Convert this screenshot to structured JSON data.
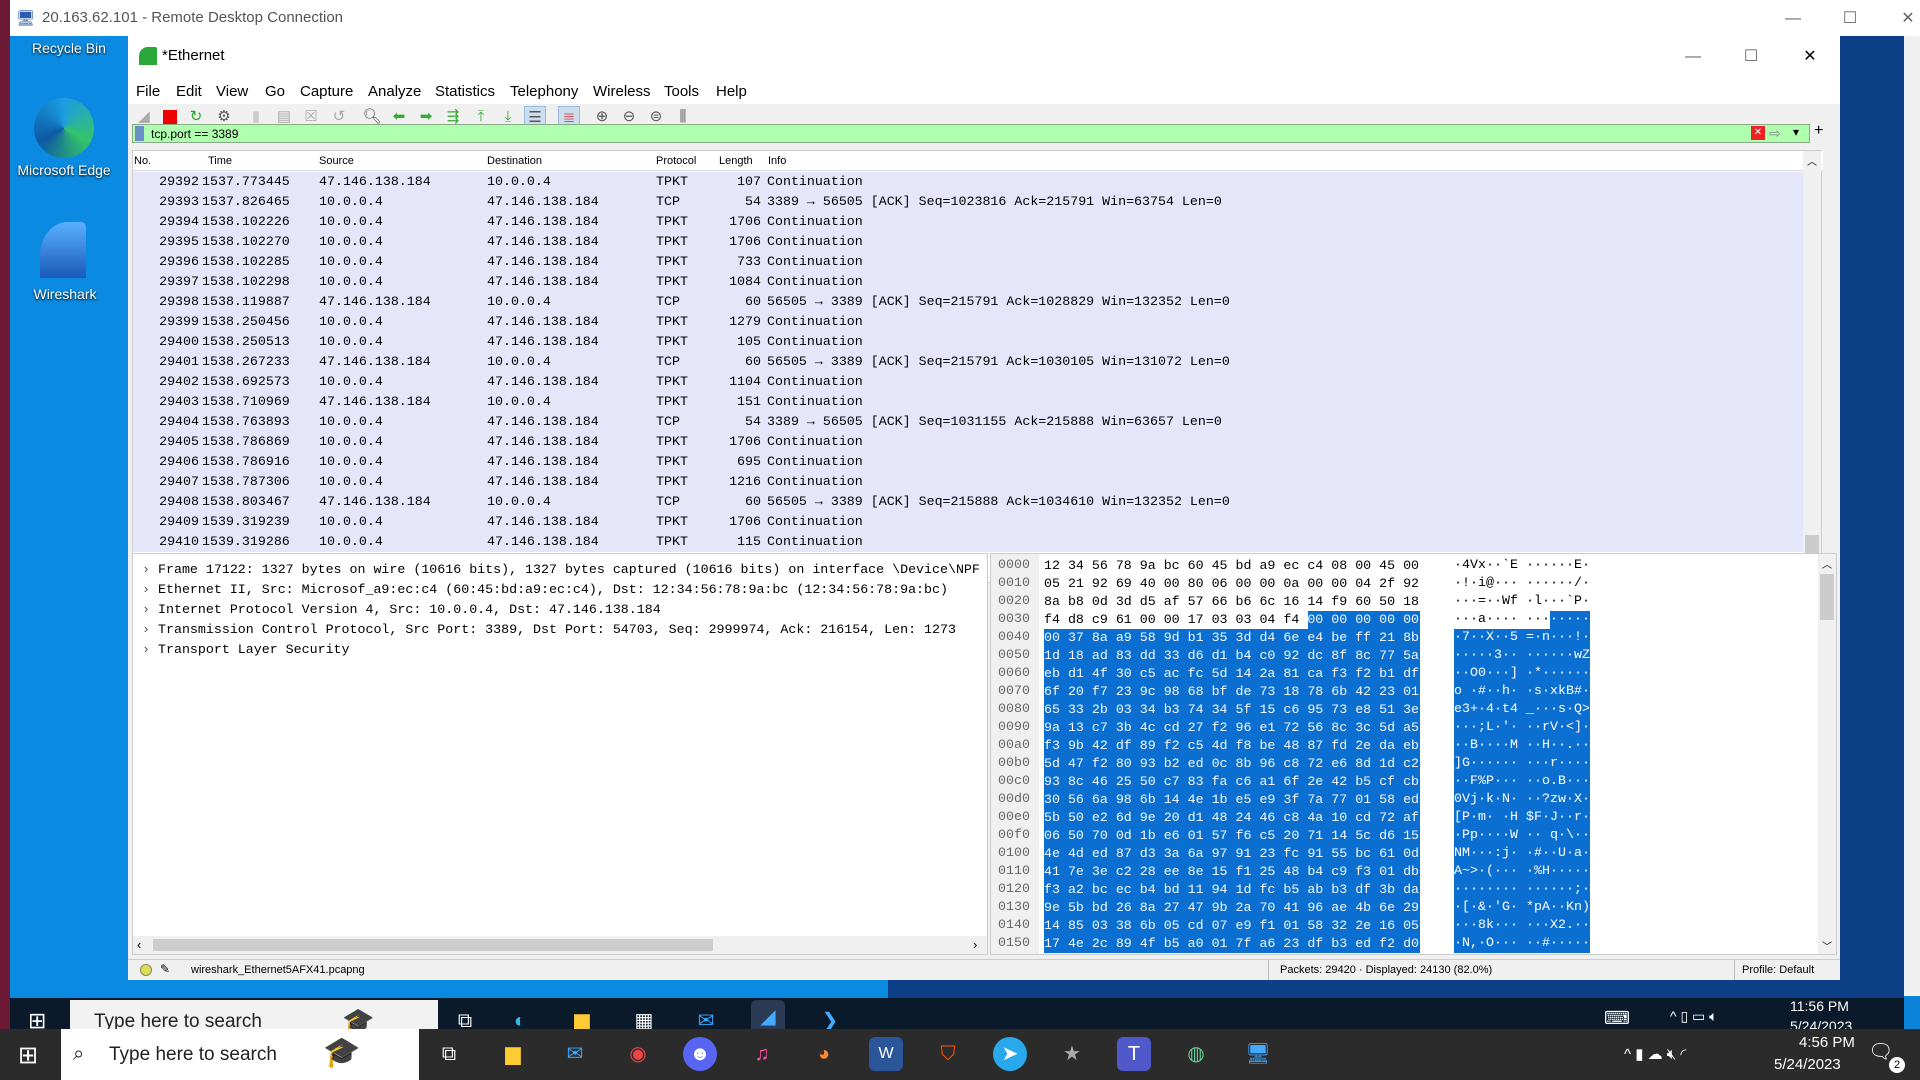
{
  "rdp": {
    "title": "20.163.62.101 - Remote Desktop Connection",
    "min": "—",
    "max": "☐",
    "close": "✕"
  },
  "desktop": {
    "icons": [
      {
        "label": "Recycle Bin"
      },
      {
        "label": "Microsoft Edge"
      },
      {
        "label": "Wireshark"
      }
    ]
  },
  "wireshark": {
    "title": "*Ethernet",
    "min": "—",
    "max": "☐",
    "close": "✕",
    "menu": [
      "File",
      "Edit",
      "View",
      "Go",
      "Capture",
      "Analyze",
      "Statistics",
      "Telephony",
      "Wireless",
      "Tools",
      "Help"
    ],
    "toolbar_icons": [
      "shark-fin-start",
      "stop",
      "restart",
      "options",
      "separator",
      "open",
      "save",
      "close",
      "reload",
      "find",
      "back",
      "forward",
      "go-to-packet",
      "first",
      "last",
      "autoscroll",
      "colorize",
      "zoom-in",
      "zoom-out",
      "zoom-normal",
      "resize-columns"
    ],
    "filter": {
      "value": "tcp.port == 3389",
      "clear": "✕",
      "apply": "⇨",
      "dropdown": "▾",
      "add": "+"
    },
    "columns": [
      "No.",
      "Time",
      "Source",
      "Destination",
      "Protocol",
      "Length",
      "Info"
    ],
    "packets": [
      [
        "29392",
        "1537.773445",
        "47.146.138.184",
        "10.0.0.4",
        "TPKT",
        "107",
        "Continuation"
      ],
      [
        "29393",
        "1537.826465",
        "10.0.0.4",
        "47.146.138.184",
        "TCP",
        "54",
        "3389 → 56505 [ACK] Seq=1023816 Ack=215791 Win=63754 Len=0"
      ],
      [
        "29394",
        "1538.102226",
        "10.0.0.4",
        "47.146.138.184",
        "TPKT",
        "1706",
        "Continuation"
      ],
      [
        "29395",
        "1538.102270",
        "10.0.0.4",
        "47.146.138.184",
        "TPKT",
        "1706",
        "Continuation"
      ],
      [
        "29396",
        "1538.102285",
        "10.0.0.4",
        "47.146.138.184",
        "TPKT",
        "733",
        "Continuation"
      ],
      [
        "29397",
        "1538.102298",
        "10.0.0.4",
        "47.146.138.184",
        "TPKT",
        "1084",
        "Continuation"
      ],
      [
        "29398",
        "1538.119887",
        "47.146.138.184",
        "10.0.0.4",
        "TCP",
        "60",
        "56505 → 3389 [ACK] Seq=215791 Ack=1028829 Win=132352 Len=0"
      ],
      [
        "29399",
        "1538.250456",
        "10.0.0.4",
        "47.146.138.184",
        "TPKT",
        "1279",
        "Continuation"
      ],
      [
        "29400",
        "1538.250513",
        "10.0.0.4",
        "47.146.138.184",
        "TPKT",
        "105",
        "Continuation"
      ],
      [
        "29401",
        "1538.267233",
        "47.146.138.184",
        "10.0.0.4",
        "TCP",
        "60",
        "56505 → 3389 [ACK] Seq=215791 Ack=1030105 Win=131072 Len=0"
      ],
      [
        "29402",
        "1538.692573",
        "10.0.0.4",
        "47.146.138.184",
        "TPKT",
        "1104",
        "Continuation"
      ],
      [
        "29403",
        "1538.710969",
        "47.146.138.184",
        "10.0.0.4",
        "TPKT",
        "151",
        "Continuation"
      ],
      [
        "29404",
        "1538.763893",
        "10.0.0.4",
        "47.146.138.184",
        "TCP",
        "54",
        "3389 → 56505 [ACK] Seq=1031155 Ack=215888 Win=63657 Len=0"
      ],
      [
        "29405",
        "1538.786869",
        "10.0.0.4",
        "47.146.138.184",
        "TPKT",
        "1706",
        "Continuation"
      ],
      [
        "29406",
        "1538.786916",
        "10.0.0.4",
        "47.146.138.184",
        "TPKT",
        "695",
        "Continuation"
      ],
      [
        "29407",
        "1538.787306",
        "10.0.0.4",
        "47.146.138.184",
        "TPKT",
        "1216",
        "Continuation"
      ],
      [
        "29408",
        "1538.803467",
        "47.146.138.184",
        "10.0.0.4",
        "TCP",
        "60",
        "56505 → 3389 [ACK] Seq=215888 Ack=1034610 Win=132352 Len=0"
      ],
      [
        "29409",
        "1539.319239",
        "10.0.0.4",
        "47.146.138.184",
        "TPKT",
        "1706",
        "Continuation"
      ],
      [
        "29410",
        "1539.319286",
        "10.0.0.4",
        "47.146.138.184",
        "TPKT",
        "115",
        "Continuation"
      ]
    ],
    "details": [
      "Frame 17122: 1327 bytes on wire (10616 bits), 1327 bytes captured (10616 bits) on interface \\Device\\NPF",
      "Ethernet II, Src: Microsof_a9:ec:c4 (60:45:bd:a9:ec:c4), Dst: 12:34:56:78:9a:bc (12:34:56:78:9a:bc)",
      "Internet Protocol Version 4, Src: 10.0.0.4, Dst: 47.146.138.184",
      "Transmission Control Protocol, Src Port: 3389, Dst Port: 54703, Seq: 2999974, Ack: 216154, Len: 1273",
      "Transport Layer Security"
    ],
    "hex": [
      [
        "0000",
        "12 34 56 78 9a bc 60 45 bd a9 ec c4 08 00 45 00"
      ],
      [
        "0010",
        "05 21 92 69 40 00 80 06 00 00 0a 00 00 04 2f 92"
      ],
      [
        "0020",
        "8a b8 0d 3d d5 af 57 66 b6 6c 16 14 f9 60 50 18"
      ],
      [
        "0030",
        "f4 d8 c9 61 00 00 17 03 03 04 f4 00 00 00 00 00"
      ],
      [
        "0040",
        "00 37 8a a9 58 9d b1 35 3d d4 6e e4 be ff 21 8b"
      ],
      [
        "0050",
        "1d 18 ad 83 dd 33 d6 d1 b4 c0 92 dc 8f 8c 77 5a"
      ],
      [
        "0060",
        "eb d1 4f 30 c5 ac fc 5d 14 2a 81 ca f3 f2 b1 df"
      ],
      [
        "0070",
        "6f 20 f7 23 9c 98 68 bf de 73 18 78 6b 42 23 01"
      ],
      [
        "0080",
        "65 33 2b 03 34 b3 74 34 5f 15 c6 95 73 e8 51 3e"
      ],
      [
        "0090",
        "9a 13 c7 3b 4c cd 27 f2 96 e1 72 56 8c 3c 5d a5"
      ],
      [
        "00a0",
        "f3 9b 42 df 89 f2 c5 4d f8 be 48 87 fd 2e da eb"
      ],
      [
        "00b0",
        "5d 47 f2 80 93 b2 ed 0c 8b 96 c8 72 e6 8d 1d c2"
      ],
      [
        "00c0",
        "93 8c 46 25 50 c7 83 fa c6 a1 6f 2e 42 b5 cf cb"
      ],
      [
        "00d0",
        "30 56 6a 98 6b 14 4e 1b e5 e9 3f 7a 77 01 58 ed"
      ],
      [
        "00e0",
        "5b 50 e2 6d 9e 20 d1 48 24 46 c8 4a 10 cd 72 af"
      ],
      [
        "00f0",
        "06 50 70 0d 1b e6 01 57 f6 c5 20 71 14 5c d6 15"
      ],
      [
        "0100",
        "4e 4d ed 87 d3 3a 6a 97 91 23 fc 91 55 bc 61 0d"
      ],
      [
        "0110",
        "41 7e 3e c2 28 ee 8e 15 f1 25 48 b4 c9 f3 01 db"
      ],
      [
        "0120",
        "f3 a2 bc ec b4 bd 11 94 1d fc b5 ab b3 df 3b da"
      ],
      [
        "0130",
        "9e 5b bd 26 8a 27 47 9b 2a 70 41 96 ae 4b 6e 29"
      ],
      [
        "0140",
        "14 85 03 38 6b 05 cd 07 e9 f1 01 58 32 2e 16 05"
      ],
      [
        "0150",
        "17 4e 2c 89 4f b5 a0 01 7f a6 23 df b3 ed f2 d0"
      ]
    ],
    "status": {
      "file": "wireshark_Ethernet5AFX41.pcapng",
      "packets": "Packets: 29420 · Displayed: 24130 (82.0%)",
      "profile": "Profile: Default"
    },
    "colors": {
      "filter_valid": "#afffaf",
      "row_bg": "#e6e6fb",
      "selection": "#0a6fd0"
    }
  },
  "remote_taskbar": {
    "search": "Type here to search",
    "time": "11:56 PM",
    "date": "5/24/2023"
  },
  "local_taskbar": {
    "search": "Type here to search",
    "time": "4:56 PM",
    "date": "5/24/2023",
    "notifications": "2",
    "apps": [
      "file-explorer",
      "mail",
      "chrome",
      "discord",
      "itunes",
      "firefox",
      "word",
      "brave",
      "telegram",
      "unknown-app",
      "teams",
      "earth",
      "remote-desktop"
    ]
  }
}
